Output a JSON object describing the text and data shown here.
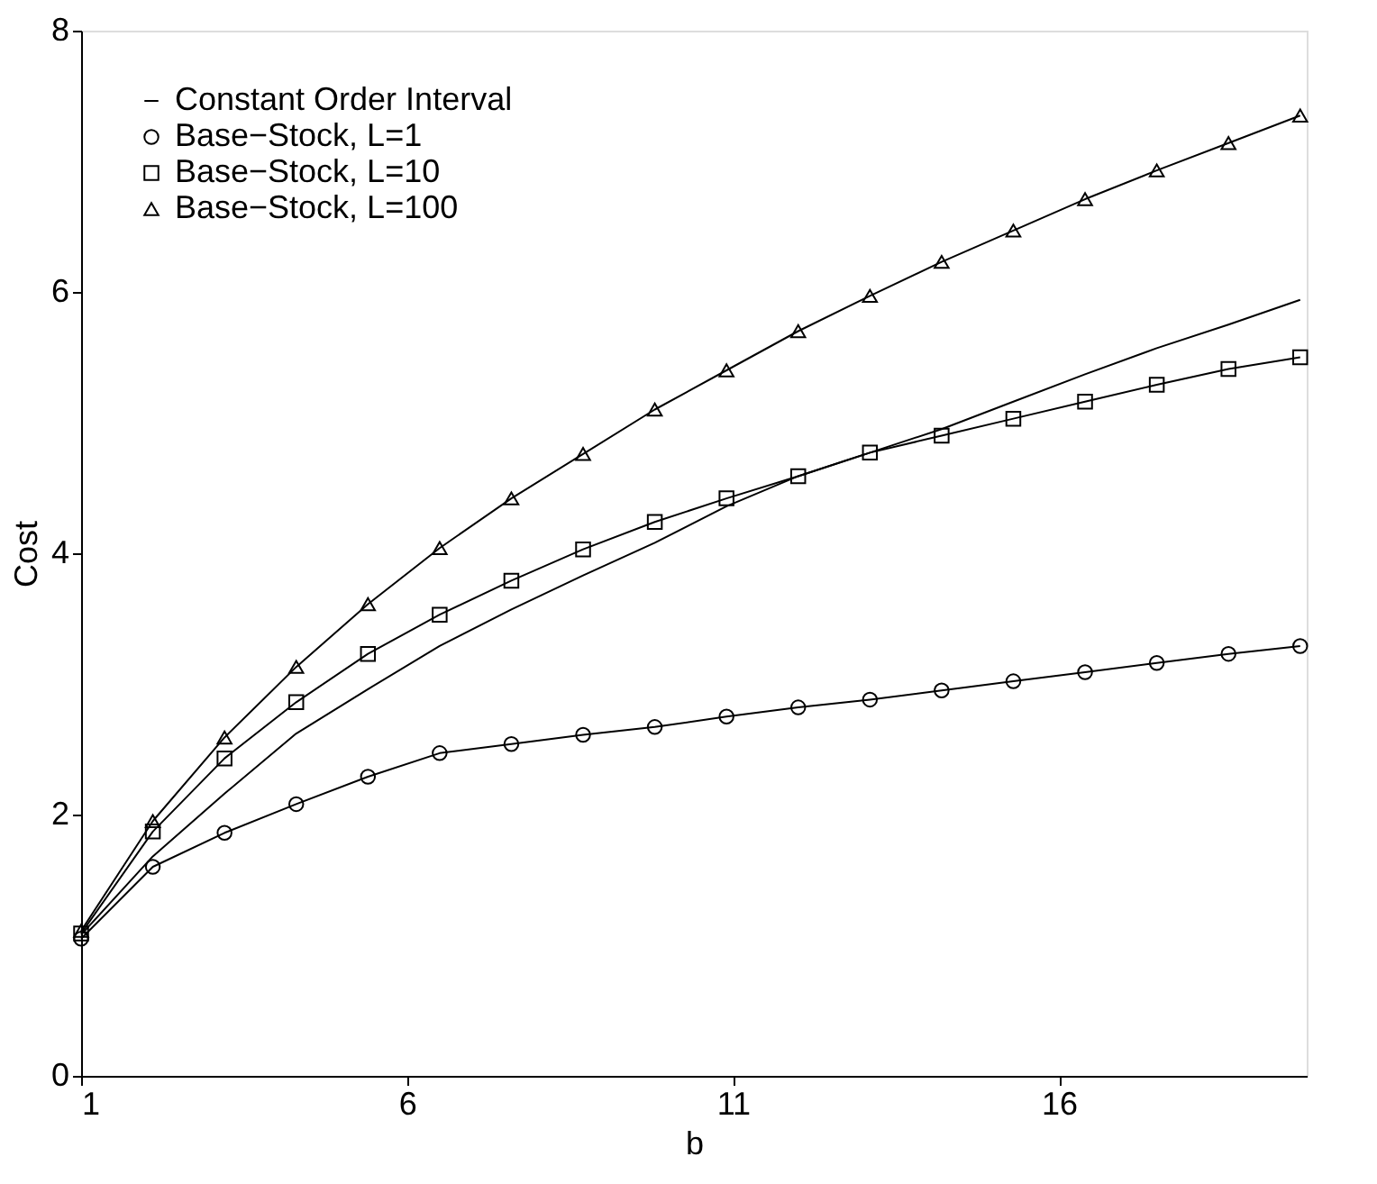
{
  "chart_data": {
    "type": "line",
    "xlabel": "b",
    "ylabel": "Cost",
    "x": [
      1,
      2.1,
      3.2,
      4.3,
      5.4,
      6.5,
      7.6,
      8.7,
      9.8,
      10.9,
      12.0,
      13.1,
      14.2,
      15.3,
      16.4,
      17.5,
      18.6,
      19.7
    ],
    "series": [
      {
        "name": "Constant Order Interval",
        "color": "#000000",
        "marker": "none",
        "values": [
          1.08,
          1.68,
          2.16,
          2.62,
          2.96,
          3.29,
          3.57,
          3.83,
          4.08,
          4.36,
          4.59,
          4.77,
          4.95,
          5.16,
          5.37,
          5.57,
          5.75,
          5.94
        ]
      },
      {
        "name": "Base−Stock, L=1",
        "color": "#000000",
        "marker": "circle",
        "values": [
          1.05,
          1.6,
          1.86,
          2.08,
          2.29,
          2.47,
          2.54,
          2.61,
          2.67,
          2.75,
          2.82,
          2.88,
          2.95,
          3.02,
          3.09,
          3.16,
          3.23,
          3.29
        ]
      },
      {
        "name": "Base−Stock, L=10",
        "color": "#000000",
        "marker": "square",
        "values": [
          1.09,
          1.87,
          2.43,
          2.86,
          3.23,
          3.53,
          3.79,
          4.03,
          4.24,
          4.42,
          4.59,
          4.77,
          4.9,
          5.03,
          5.16,
          5.29,
          5.41,
          5.5
        ]
      },
      {
        "name": "Base−Stock, L=100",
        "color": "#000000",
        "marker": "triangle",
        "values": [
          1.11,
          1.95,
          2.59,
          3.13,
          3.61,
          4.04,
          4.42,
          4.76,
          5.1,
          5.4,
          5.7,
          5.97,
          6.23,
          6.47,
          6.71,
          6.93,
          7.14,
          7.35
        ]
      }
    ],
    "xlim": [
      1,
      19.8
    ],
    "xticks": [
      1,
      6,
      11,
      16
    ],
    "ylim": [
      0,
      8
    ],
    "yticks": [
      0,
      2,
      4,
      6,
      8
    ],
    "grid": false,
    "legend": "top left",
    "line_style": "solid"
  }
}
